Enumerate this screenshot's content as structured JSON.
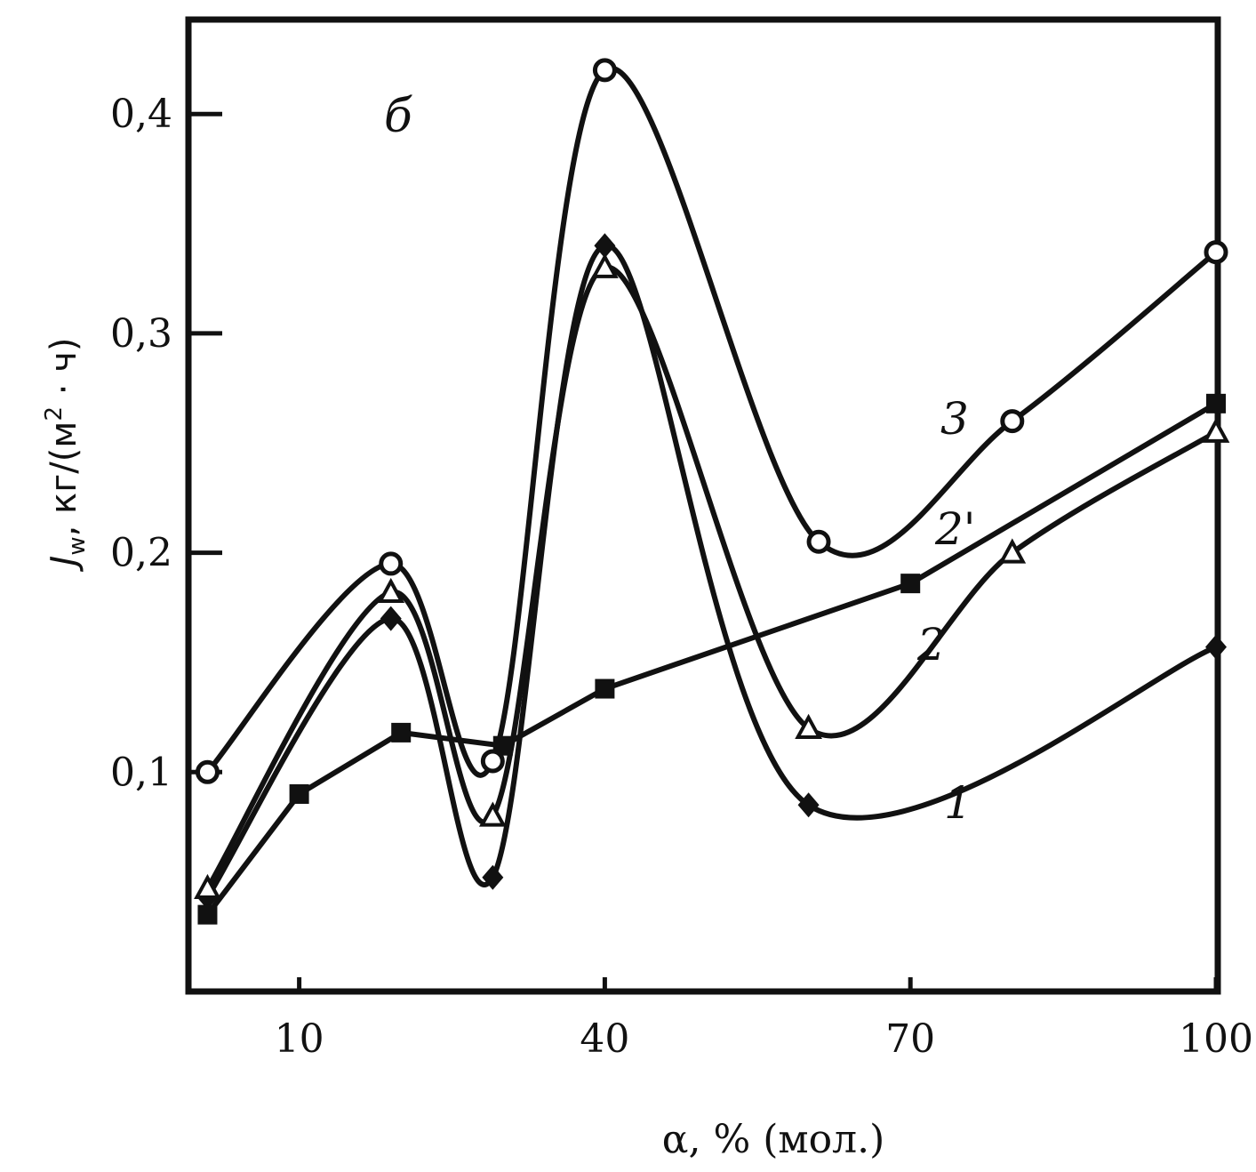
{
  "chart_data": {
    "type": "line",
    "panel_label": "б",
    "xlabel": "α, % (мол.)",
    "ylabel": "J_w, кг/(м²·ч)",
    "ylabel_main": "J",
    "ylabel_sub": "w",
    "ylabel_rest": ", кг/(м",
    "ylabel_sup": "2",
    "ylabel_end": " · ч)",
    "xlim": [
      0,
      100
    ],
    "ylim": [
      0,
      0.43
    ],
    "x_ticks": [
      10,
      40,
      70,
      100
    ],
    "x_tick_labels": [
      "10",
      "40",
      "70",
      "100"
    ],
    "y_ticks": [
      0.1,
      0.2,
      0.3,
      0.4
    ],
    "y_tick_labels": [
      "0,1",
      "0,2",
      "0,3",
      "0,4"
    ],
    "grid": false,
    "series": [
      {
        "name": "1",
        "marker": "diamond-filled",
        "x": [
          1,
          19,
          29,
          40,
          60,
          100
        ],
        "y": [
          0.043,
          0.17,
          0.052,
          0.34,
          0.085,
          0.157
        ]
      },
      {
        "name": "2",
        "marker": "triangle-open",
        "x": [
          1,
          19,
          29,
          40,
          60,
          80,
          100
        ],
        "y": [
          0.047,
          0.182,
          0.08,
          0.33,
          0.12,
          0.2,
          0.255
        ]
      },
      {
        "name": "2'",
        "marker": "square-filled",
        "x": [
          1,
          10,
          20,
          30,
          40,
          70,
          100
        ],
        "y": [
          0.035,
          0.09,
          0.118,
          0.112,
          0.138,
          0.186,
          0.268
        ]
      },
      {
        "name": "3",
        "marker": "circle-open",
        "x": [
          1,
          19,
          29,
          40,
          61,
          80,
          100
        ],
        "y": [
          0.1,
          0.195,
          0.105,
          0.42,
          0.205,
          0.26,
          0.337
        ]
      }
    ]
  }
}
